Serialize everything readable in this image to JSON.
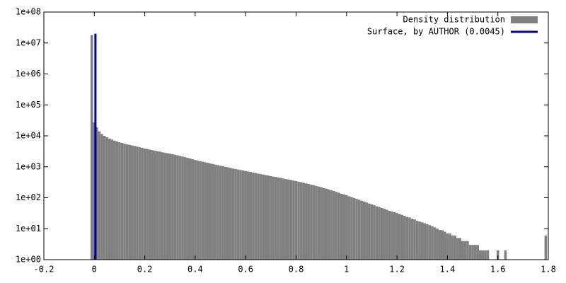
{
  "chart_data": {
    "type": "histogram",
    "xlim": [
      -0.2,
      1.8
    ],
    "xticks": [
      -0.2,
      0,
      0.2,
      0.4,
      0.6,
      0.8,
      1,
      1.2,
      1.4,
      1.6,
      1.8
    ],
    "ylim": [
      1,
      100000000
    ],
    "log_y": true,
    "yticks": [
      {
        "value": 1,
        "label": "1e+00"
      },
      {
        "value": 10,
        "label": "1e+01"
      },
      {
        "value": 100,
        "label": "1e+02"
      },
      {
        "value": 1000,
        "label": "1e+03"
      },
      {
        "value": 10000,
        "label": "1e+04"
      },
      {
        "value": 100000,
        "label": "1e+05"
      },
      {
        "value": 1000000,
        "label": "1e+06"
      },
      {
        "value": 10000000,
        "label": "1e+07"
      },
      {
        "value": 100000000,
        "label": "1e+08"
      }
    ],
    "legend": "top-right",
    "bins": [
      -0.015,
      -0.005,
      0.005,
      0.015,
      0.025,
      0.035,
      0.045,
      0.055,
      0.065,
      0.075,
      0.085,
      0.095,
      0.105,
      0.115,
      0.125,
      0.135,
      0.145,
      0.155,
      0.165,
      0.175,
      0.185,
      0.195,
      0.205,
      0.215,
      0.225,
      0.235,
      0.245,
      0.255,
      0.265,
      0.275,
      0.285,
      0.295,
      0.305,
      0.315,
      0.325,
      0.335,
      0.345,
      0.355,
      0.365,
      0.375,
      0.385,
      0.395,
      0.405,
      0.415,
      0.425,
      0.435,
      0.445,
      0.455,
      0.465,
      0.475,
      0.485,
      0.495,
      0.505,
      0.515,
      0.525,
      0.535,
      0.545,
      0.555,
      0.565,
      0.575,
      0.585,
      0.595,
      0.605,
      0.615,
      0.625,
      0.635,
      0.645,
      0.655,
      0.665,
      0.675,
      0.685,
      0.695,
      0.705,
      0.715,
      0.725,
      0.735,
      0.745,
      0.755,
      0.765,
      0.775,
      0.785,
      0.795,
      0.805,
      0.815,
      0.825,
      0.835,
      0.845,
      0.855,
      0.865,
      0.875,
      0.885,
      0.895,
      0.905,
      0.915,
      0.925,
      0.935,
      0.945,
      0.955,
      0.965,
      0.975,
      0.985,
      0.995,
      1.005,
      1.015,
      1.025,
      1.035,
      1.045,
      1.055,
      1.065,
      1.075,
      1.085,
      1.095,
      1.105,
      1.115,
      1.125,
      1.135,
      1.145,
      1.155,
      1.165,
      1.175,
      1.185,
      1.195,
      1.205,
      1.215,
      1.225,
      1.235,
      1.245,
      1.255,
      1.265,
      1.275,
      1.285,
      1.295,
      1.305,
      1.315,
      1.325,
      1.335,
      1.345,
      1.355,
      1.365,
      1.375,
      1.385,
      1.395,
      1.405,
      1.415,
      1.425,
      1.435,
      1.445,
      1.455,
      1.465,
      1.475,
      1.485,
      1.495,
      1.505,
      1.515,
      1.525,
      1.535,
      1.545,
      1.555,
      1.565,
      1.575,
      1.585,
      1.595,
      1.605,
      1.615,
      1.625,
      1.635,
      1.645,
      1.655,
      1.665,
      1.675,
      1.685,
      1.695,
      1.705,
      1.715,
      1.725,
      1.735,
      1.745,
      1.755,
      1.765,
      1.775,
      1.785,
      1.795
    ],
    "series": [
      {
        "name": "Density distribution",
        "color": "#808080",
        "values": [
          18000000,
          27000,
          19000,
          14000,
          11500,
          10000,
          9000,
          8200,
          7600,
          7000,
          6600,
          6200,
          5900,
          5600,
          5300,
          5100,
          4900,
          4700,
          4500,
          4300,
          4100,
          3900,
          3750,
          3600,
          3450,
          3300,
          3200,
          3100,
          2950,
          2850,
          2750,
          2650,
          2550,
          2450,
          2350,
          2250,
          2150,
          2050,
          1950,
          1850,
          1750,
          1650,
          1580,
          1520,
          1460,
          1400,
          1340,
          1280,
          1230,
          1180,
          1130,
          1080,
          1040,
          1000,
          960,
          920,
          880,
          850,
          820,
          790,
          760,
          730,
          700,
          680,
          650,
          630,
          600,
          580,
          560,
          540,
          520,
          500,
          480,
          470,
          450,
          440,
          420,
          400,
          390,
          375,
          360,
          345,
          330,
          320,
          305,
          290,
          280,
          265,
          255,
          240,
          230,
          220,
          205,
          195,
          185,
          175,
          165,
          155,
          145,
          135,
          128,
          120,
          112,
          105,
          98,
          92,
          86,
          80,
          75,
          70,
          65,
          61,
          57,
          53,
          50,
          47,
          44,
          41,
          38,
          36,
          34,
          32,
          30,
          28,
          26,
          24,
          23,
          21,
          20,
          18,
          17,
          16,
          15,
          14,
          13,
          12,
          11,
          10,
          9,
          9,
          8,
          7,
          7,
          6,
          6,
          5,
          5,
          4,
          4,
          4,
          3,
          3,
          3,
          3,
          2,
          2,
          2,
          2,
          0,
          0,
          0,
          2,
          0,
          0,
          2,
          0,
          0,
          0,
          0,
          0,
          0,
          0,
          0,
          0,
          0,
          0,
          0,
          0,
          0,
          0,
          6
        ]
      }
    ],
    "lines": [
      {
        "name": "Surface, by AUTHOR (0.0045)",
        "color": "#0000a0",
        "x": [
          0.0045,
          0.0045
        ],
        "values": [
          1,
          20000000
        ]
      }
    ]
  }
}
